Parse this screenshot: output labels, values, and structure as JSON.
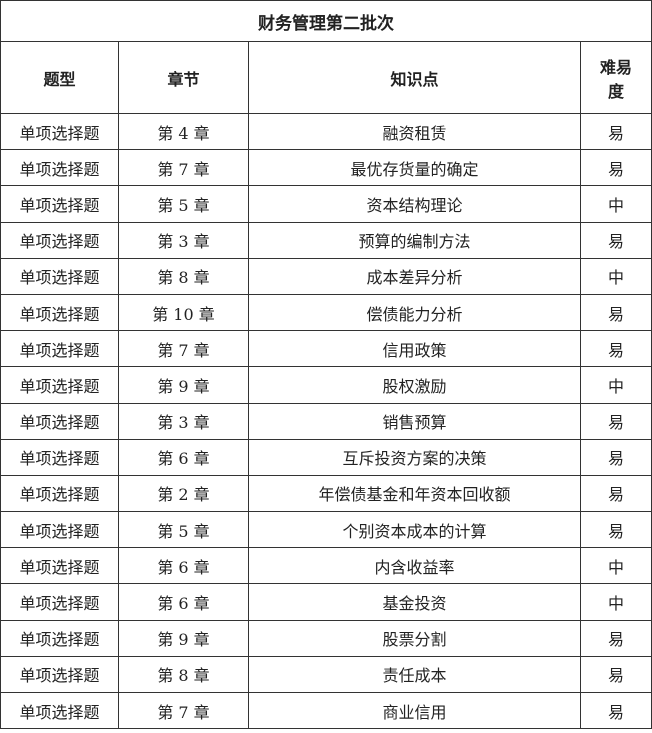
{
  "title": "财务管理第二批次",
  "headers": [
    "题型",
    "章节",
    "知识点",
    "难易度"
  ],
  "rows": [
    [
      "单项选择题",
      "第 4 章",
      "融资租赁",
      "易"
    ],
    [
      "单项选择题",
      "第 7 章",
      "最优存货量的确定",
      "易"
    ],
    [
      "单项选择题",
      "第 5 章",
      "资本结构理论",
      "中"
    ],
    [
      "单项选择题",
      "第 3 章",
      "预算的编制方法",
      "易"
    ],
    [
      "单项选择题",
      "第 8 章",
      "成本差异分析",
      "中"
    ],
    [
      "单项选择题",
      "第 10 章",
      "偿债能力分析",
      "易"
    ],
    [
      "单项选择题",
      "第 7 章",
      "信用政策",
      "易"
    ],
    [
      "单项选择题",
      "第 9 章",
      "股权激励",
      "中"
    ],
    [
      "单项选择题",
      "第 3 章",
      "销售预算",
      "易"
    ],
    [
      "单项选择题",
      "第 6 章",
      "互斥投资方案的决策",
      "易"
    ],
    [
      "单项选择题",
      "第 2 章",
      "年偿债基金和年资本回收额",
      "易"
    ],
    [
      "单项选择题",
      "第 5 章",
      "个别资本成本的计算",
      "易"
    ],
    [
      "单项选择题",
      "第 6 章",
      "内含收益率",
      "中"
    ],
    [
      "单项选择题",
      "第 6 章",
      "基金投资",
      "中"
    ],
    [
      "单项选择题",
      "第 9 章",
      "股票分割",
      "易"
    ],
    [
      "单项选择题",
      "第 8 章",
      "责任成本",
      "易"
    ],
    [
      "单项选择题",
      "第 7 章",
      "商业信用",
      "易"
    ]
  ]
}
